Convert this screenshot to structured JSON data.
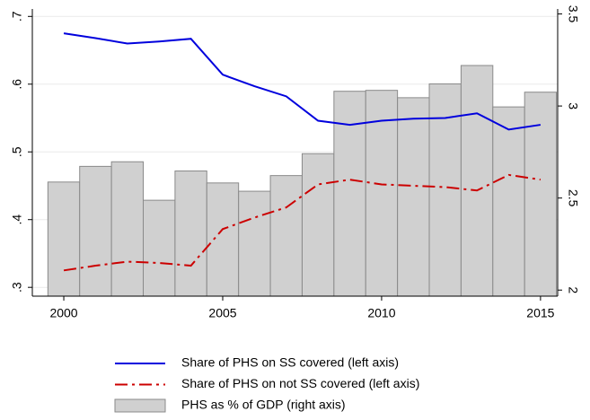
{
  "chart_data": {
    "type": "bar",
    "x": [
      2000,
      2001,
      2002,
      2003,
      2004,
      2005,
      2006,
      2007,
      2008,
      2009,
      2010,
      2011,
      2012,
      2013,
      2014,
      2015
    ],
    "xlim": [
      1999.01,
      2015.54
    ],
    "xticks": [
      2000,
      2005,
      2010,
      2015
    ],
    "ylim": [
      0.287,
      0.711
    ],
    "yticks": [
      {
        "value": 0.3,
        "label": ".3"
      },
      {
        "value": 0.4,
        "label": ".4"
      },
      {
        "value": 0.5,
        "label": ".5"
      },
      {
        "value": 0.6,
        "label": ".6"
      },
      {
        "value": 0.7,
        "label": ".7"
      }
    ],
    "y2lim": [
      1.967,
      3.527
    ],
    "y2ticks": [
      2,
      2.5,
      3,
      3.5
    ],
    "grid": true,
    "legend": "bottom",
    "series": [
      {
        "name": "Share of PHS on SS covered (left axis)",
        "type": "line",
        "style": "solid",
        "color": "#0000dd",
        "values": [
          0.675,
          0.668,
          0.66,
          0.663,
          0.667,
          0.614,
          0.597,
          0.582,
          0.546,
          0.54,
          0.546,
          0.549,
          0.55,
          0.557,
          0.533,
          0.54
        ]
      },
      {
        "name": "Share of PHS on not SS covered (left axis)",
        "type": "line",
        "style": "dashdot",
        "color": "#cc0000",
        "values": [
          0.325,
          0.332,
          0.338,
          0.336,
          0.332,
          0.386,
          0.403,
          0.418,
          0.452,
          0.459,
          0.452,
          0.45,
          0.448,
          0.443,
          0.466,
          0.459
        ]
      },
      {
        "name": "PHS as % of GDP (right axis)",
        "type": "bar",
        "axis": "y2",
        "color": "#d0d0d0",
        "values": [
          2.587,
          2.672,
          2.697,
          2.488,
          2.647,
          2.582,
          2.537,
          2.622,
          2.741,
          3.08,
          3.085,
          3.045,
          3.12,
          3.22,
          2.995,
          3.075
        ]
      }
    ]
  }
}
